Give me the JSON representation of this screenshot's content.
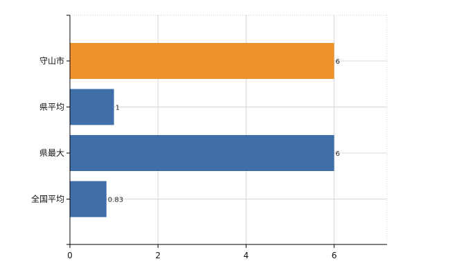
{
  "chart_data": {
    "type": "bar",
    "orientation": "horizontal",
    "categories": [
      "守山市",
      "県平均",
      "県最大",
      "全国平均"
    ],
    "values": [
      6,
      1,
      6,
      0.83
    ],
    "value_labels": [
      "6",
      "1",
      "6",
      "0.83"
    ],
    "bar_colors": [
      "#f0922c",
      "#3f6ea8",
      "#3f6ea8",
      "#3f6ea8"
    ],
    "xlim": [
      0,
      7.2
    ],
    "xticks": [
      0,
      2,
      4,
      6
    ],
    "xtick_labels": [
      "0",
      "2",
      "4",
      "6"
    ],
    "grid": true,
    "legend": false,
    "title": "",
    "xlabel": "",
    "ylabel": ""
  }
}
